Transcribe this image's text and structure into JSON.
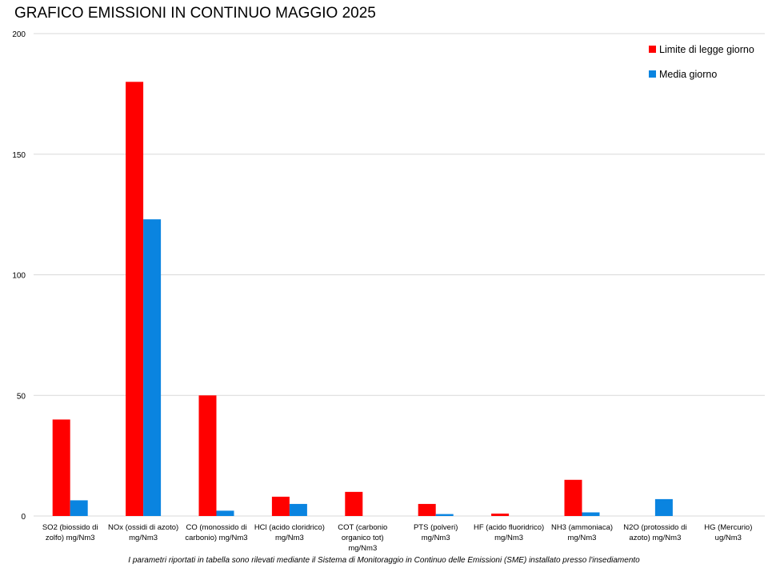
{
  "chart_data": {
    "type": "bar",
    "title": "GRAFICO EMISSIONI IN CONTINUO MAGGIO 2025",
    "categories": [
      [
        "SO2 (biossido di",
        "zolfo) mg/Nm3"
      ],
      [
        "NOx (ossidi di azoto)",
        "mg/Nm3"
      ],
      [
        "CO (monossido di",
        "carbonio) mg/Nm3"
      ],
      [
        "HCl (acido cloridrico)",
        "mg/Nm3"
      ],
      [
        "COT (carbonio",
        "organico tot)",
        "mg/Nm3"
      ],
      [
        "PTS (polveri)",
        "mg/Nm3"
      ],
      [
        "HF (acido fluoridrico)",
        "mg/Nm3"
      ],
      [
        "NH3 (ammoniaca)",
        "mg/Nm3"
      ],
      [
        "N2O (protossido di",
        "azoto) mg/Nm3"
      ],
      [
        "HG (Mercurio)",
        "ug/Nm3"
      ]
    ],
    "series": [
      {
        "name": "Limite di legge giorno",
        "color": "#ff0000",
        "values": [
          40,
          180,
          50,
          8,
          10,
          5,
          1,
          15,
          null,
          null
        ]
      },
      {
        "name": "Media giorno",
        "color": "#0a84e0",
        "values": [
          6.5,
          123,
          2.2,
          5,
          null,
          0.8,
          null,
          1.5,
          7,
          null
        ]
      }
    ],
    "ylim": [
      0,
      200
    ],
    "yticks": [
      0,
      50,
      100,
      150,
      200
    ],
    "grid": true,
    "legend_position": "top-right"
  },
  "footnote": "I parametri riportati in tabella sono rilevati mediante il Sistema di Monitoraggio in Continuo delle Emissioni (SME) installato presso l'insediamento"
}
